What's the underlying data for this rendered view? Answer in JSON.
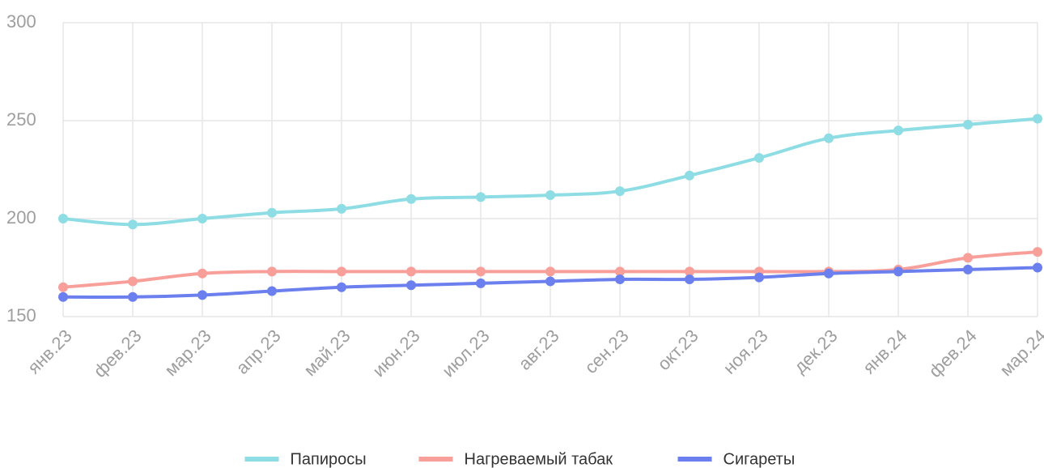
{
  "chart_data": {
    "type": "line",
    "categories": [
      "янв.23",
      "фев.23",
      "мар.23",
      "апр.23",
      "май.23",
      "июн.23",
      "июл.23",
      "авг.23",
      "сен.23",
      "окт.23",
      "ноя.23",
      "дек.23",
      "янв.24",
      "фев.24",
      "мар.24"
    ],
    "series": [
      {
        "name": "Папиросы",
        "color": "#8edde4",
        "values": [
          200,
          197,
          200,
          203,
          205,
          210,
          211,
          212,
          214,
          222,
          231,
          241,
          245,
          248,
          251
        ]
      },
      {
        "name": "Нагреваемый табак",
        "color": "#f89f9a",
        "values": [
          165,
          168,
          172,
          173,
          173,
          173,
          173,
          173,
          173,
          173,
          173,
          173,
          174,
          180,
          183
        ]
      },
      {
        "name": "Сигареты",
        "color": "#6b80ee",
        "values": [
          160,
          160,
          161,
          163,
          165,
          166,
          167,
          168,
          169,
          169,
          170,
          172,
          173,
          174,
          175
        ]
      }
    ],
    "ylim": [
      150,
      300
    ],
    "yticks": [
      150,
      200,
      250,
      300
    ],
    "grid": true,
    "legend": "bottom"
  }
}
